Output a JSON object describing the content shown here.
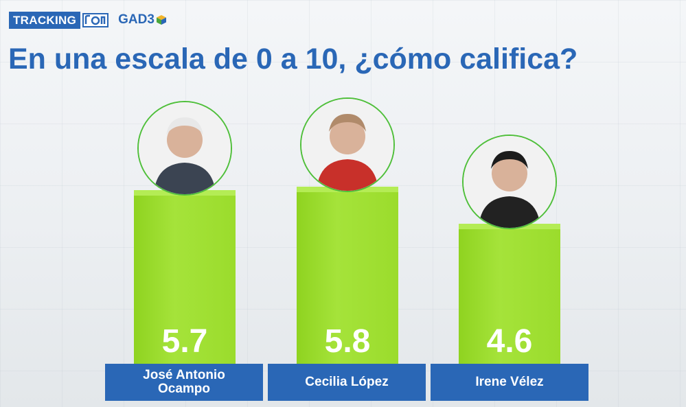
{
  "header": {
    "tracking_label": "TRACKING",
    "partner_logo": "GAD3"
  },
  "title": "En una escala de 0 a 10, ¿cómo califica?",
  "colors": {
    "brand_blue": "#2a67b6",
    "bar_green": "#9bdc2c",
    "avatar_ring": "#4fbf3a"
  },
  "chart_data": {
    "type": "bar",
    "title": "En una escala de 0 a 10, ¿cómo califica?",
    "categories": [
      "José Antonio Ocampo",
      "Cecilia López",
      "Irene Vélez"
    ],
    "values": [
      5.7,
      5.8,
      4.6
    ],
    "value_labels": [
      "5.7",
      "5.8",
      "4.6"
    ],
    "ylim": [
      0,
      10
    ],
    "grid": false
  }
}
